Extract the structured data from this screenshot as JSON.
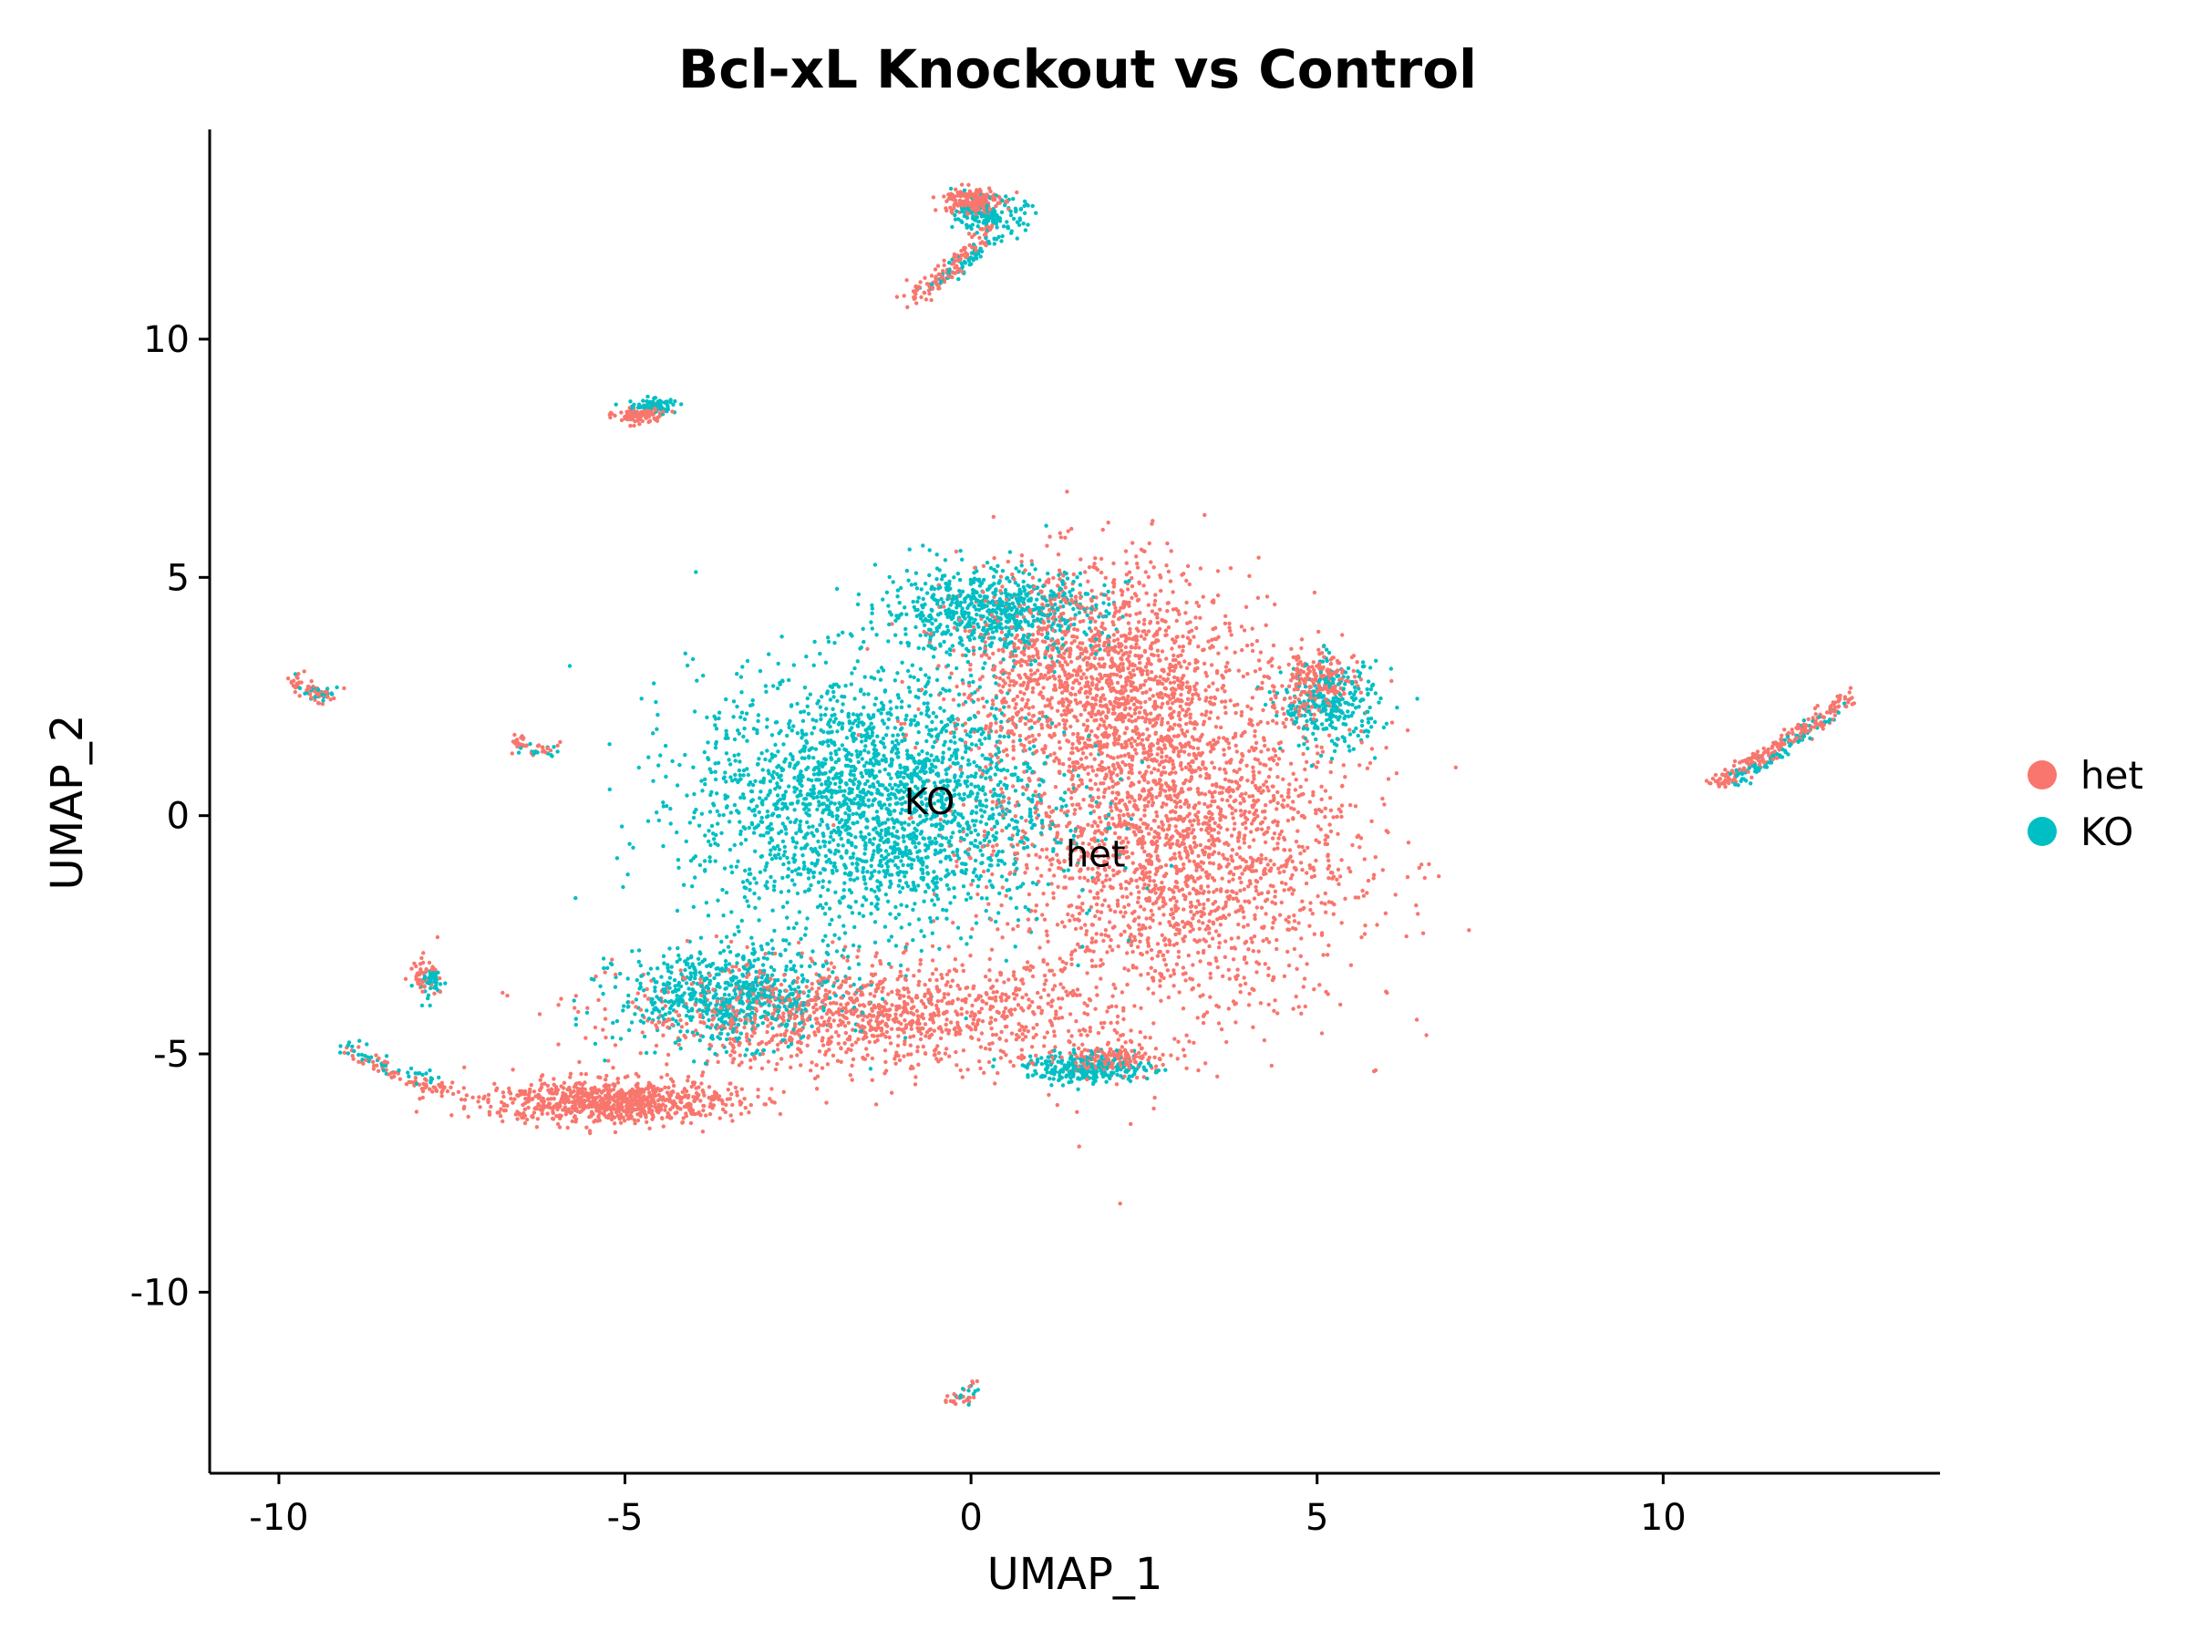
{
  "chart_data": {
    "type": "scatter",
    "title": "Bcl-xL Knockout vs Control",
    "xlabel": "UMAP_1",
    "ylabel": "UMAP_2",
    "xlim": [
      -11,
      14
    ],
    "ylim": [
      -13.8,
      14.4
    ],
    "xticks": [
      {
        "value": -10,
        "label": "-10"
      },
      {
        "value": -5,
        "label": "-5"
      },
      {
        "value": 0,
        "label": "0"
      },
      {
        "value": 5,
        "label": "5"
      },
      {
        "value": 10,
        "label": "10"
      }
    ],
    "yticks": [
      {
        "value": -10,
        "label": "-10"
      },
      {
        "value": -5,
        "label": "-5"
      },
      {
        "value": 0,
        "label": "0"
      },
      {
        "value": 5,
        "label": "5"
      },
      {
        "value": 10,
        "label": "10"
      }
    ],
    "grid": false,
    "legend_position": "right",
    "series": [
      {
        "name": "het",
        "color": "#F8766D"
      },
      {
        "name": "KO",
        "color": "#00BFC4"
      }
    ],
    "annotations": [
      {
        "text": "KO",
        "x": -0.6,
        "y": 0.3
      },
      {
        "text": "het",
        "x": 1.8,
        "y": -0.8
      }
    ],
    "clusters": [
      {
        "series": "het",
        "cx": 2.9,
        "cy": -0.5,
        "rx": 2.6,
        "ry": 3.8,
        "weight": 1.0
      },
      {
        "series": "het",
        "cx": 1.8,
        "cy": 3.0,
        "rx": 2.0,
        "ry": 2.3,
        "weight": 0.6
      },
      {
        "series": "het",
        "cx": -1.5,
        "cy": -4.2,
        "rx": 3.5,
        "ry": 1.1,
        "weight": 0.5
      },
      {
        "series": "het",
        "cx": -5.2,
        "cy": -6.0,
        "rx": 1.8,
        "ry": 0.45,
        "weight": 0.35
      },
      {
        "series": "KO",
        "cx": -1.4,
        "cy": 0.3,
        "rx": 2.6,
        "ry": 2.7,
        "weight": 1.0
      },
      {
        "series": "KO",
        "cx": -3.5,
        "cy": -3.8,
        "rx": 1.6,
        "ry": 1.0,
        "weight": 0.3
      },
      {
        "series": "KO",
        "cx": 0.3,
        "cy": 4.3,
        "rx": 1.6,
        "ry": 0.9,
        "weight": 0.3
      },
      {
        "series": "KO",
        "cx": 5.2,
        "cy": 2.3,
        "rx": 0.7,
        "ry": 0.9,
        "weight": 0.12
      },
      {
        "series": "het",
        "cx": 5.0,
        "cy": 2.8,
        "rx": 0.6,
        "ry": 0.6,
        "weight": 0.08
      },
      {
        "series": "KO",
        "cx": 1.7,
        "cy": -5.3,
        "rx": 0.9,
        "ry": 0.3,
        "weight": 0.12
      },
      {
        "series": "het",
        "cx": 2.0,
        "cy": -5.1,
        "rx": 0.7,
        "ry": 0.25,
        "weight": 0.06
      },
      {
        "series": "het",
        "cx": 0.0,
        "cy": 12.9,
        "rx": 0.4,
        "ry": 0.3,
        "weight": 0.08
      },
      {
        "series": "KO",
        "cx": 0.3,
        "cy": 12.6,
        "rx": 0.5,
        "ry": 0.35,
        "weight": 0.06
      },
      {
        "series": "het",
        "cx": -4.8,
        "cy": 8.4,
        "rx": 0.35,
        "ry": 0.18,
        "weight": 0.04
      },
      {
        "series": "KO",
        "cx": -4.6,
        "cy": 8.6,
        "rx": 0.35,
        "ry": 0.15,
        "weight": 0.03
      },
      {
        "series": "het",
        "cx": -7.9,
        "cy": -3.3,
        "rx": 0.2,
        "ry": 0.35,
        "weight": 0.02
      },
      {
        "series": "KO",
        "cx": -7.8,
        "cy": -3.5,
        "rx": 0.2,
        "ry": 0.35,
        "weight": 0.02
      }
    ],
    "strands": [
      {
        "series": "het",
        "from": [
          10.6,
          0.6
        ],
        "to": [
          12.7,
          2.5
        ],
        "n": 220
      },
      {
        "series": "KO",
        "from": [
          11.0,
          0.7
        ],
        "to": [
          12.6,
          2.4
        ],
        "n": 90
      },
      {
        "series": "het",
        "from": [
          -0.9,
          10.8
        ],
        "to": [
          0.3,
          12.4
        ],
        "n": 120
      },
      {
        "series": "KO",
        "from": [
          -0.6,
          11.1
        ],
        "to": [
          0.6,
          12.5
        ],
        "n": 60
      },
      {
        "series": "het",
        "from": [
          -9.8,
          2.9
        ],
        "to": [
          -9.2,
          2.5
        ],
        "n": 50
      },
      {
        "series": "KO",
        "from": [
          -9.7,
          2.8
        ],
        "to": [
          -9.2,
          2.6
        ],
        "n": 25
      },
      {
        "series": "het",
        "from": [
          -6.6,
          1.6
        ],
        "to": [
          -6.1,
          1.4
        ],
        "n": 35
      },
      {
        "series": "KO",
        "from": [
          -6.4,
          1.5
        ],
        "to": [
          -6.1,
          1.4
        ],
        "n": 15
      },
      {
        "series": "het",
        "from": [
          -9.0,
          -4.9
        ],
        "to": [
          -7.5,
          -5.8
        ],
        "n": 70
      },
      {
        "series": "KO",
        "from": [
          -9.0,
          -4.8
        ],
        "to": [
          -7.6,
          -5.6
        ],
        "n": 40
      },
      {
        "series": "het",
        "from": [
          -0.3,
          -12.3
        ],
        "to": [
          0.1,
          -11.9
        ],
        "n": 25
      },
      {
        "series": "KO",
        "from": [
          -0.2,
          -12.2
        ],
        "to": [
          0.1,
          -11.9
        ],
        "n": 12
      }
    ]
  }
}
